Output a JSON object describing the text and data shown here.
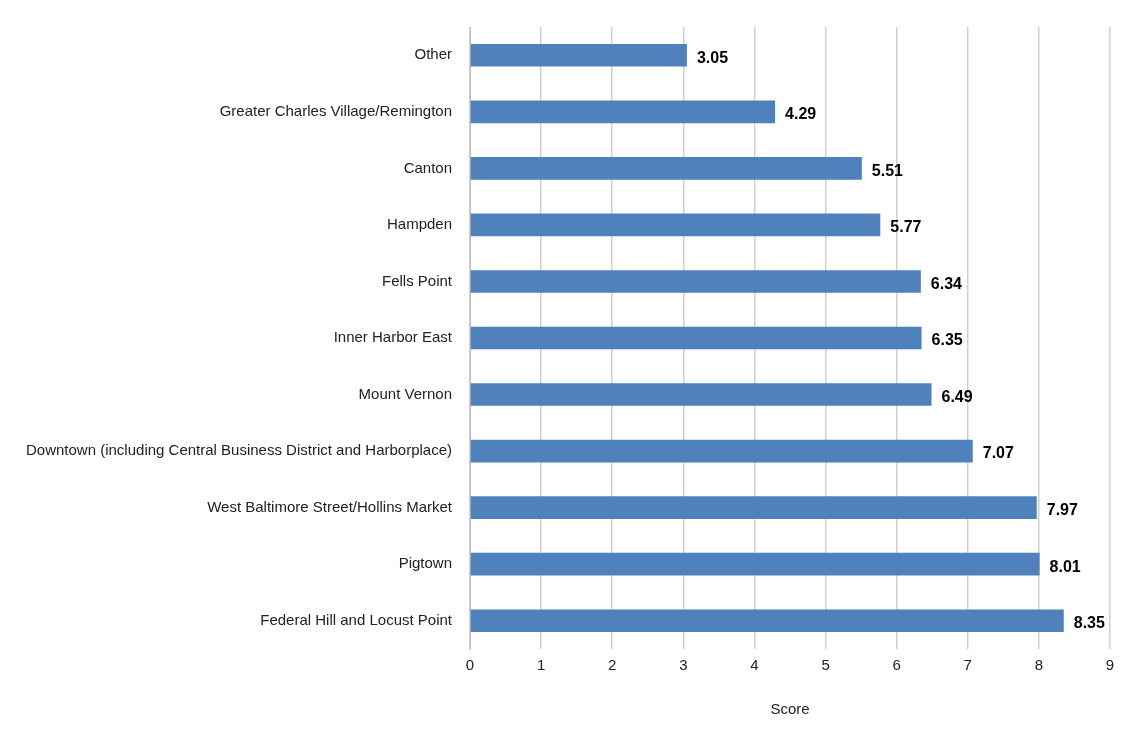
{
  "chart_data": {
    "type": "bar",
    "orientation": "horizontal",
    "xlabel": "Score",
    "categories": [
      "Other",
      "Greater Charles Village/Remington",
      "Canton",
      "Hampden",
      "Fells Point",
      "Inner Harbor East",
      "Mount Vernon",
      "Downtown (including Central Business District and Harborplace)",
      "West Baltimore Street/Hollins Market",
      "Pigtown",
      "Federal Hill and Locust Point"
    ],
    "values": [
      3.05,
      4.29,
      5.51,
      5.77,
      6.34,
      6.35,
      6.49,
      7.07,
      7.97,
      8.01,
      8.35
    ],
    "color": "#4f81bd",
    "xlim": [
      0,
      9
    ],
    "xticks": [
      0,
      1,
      2,
      3,
      4,
      5,
      6,
      7,
      8,
      9
    ],
    "grid": "x",
    "data_labels": true,
    "legend": false
  }
}
